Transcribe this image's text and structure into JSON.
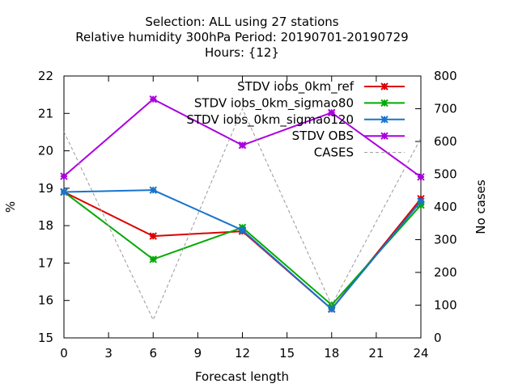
{
  "chart_data": {
    "type": "line",
    "title_lines": [
      "Selection: ALL using    27 stations",
      "Relative humidity 300hPa   Period: 20190701-20190729",
      "Hours: {12}"
    ],
    "xlabel": "Forecast length",
    "ylabel": "%",
    "y2label": "No cases",
    "x": [
      0,
      6,
      12,
      18,
      24
    ],
    "xlim": [
      0,
      24
    ],
    "ylim": [
      15,
      22
    ],
    "y2lim": [
      0,
      800
    ],
    "xticks": [
      0,
      3,
      6,
      9,
      12,
      15,
      18,
      21,
      24
    ],
    "yticks": [
      15,
      16,
      17,
      18,
      19,
      20,
      21,
      22
    ],
    "y2ticks": [
      0,
      100,
      200,
      300,
      400,
      500,
      600,
      700,
      800
    ],
    "grid": false,
    "legend_position": "top-right",
    "series": [
      {
        "name": "STDV iobs_0km_ref",
        "color": "#dd0000",
        "axis": "y",
        "values": [
          18.9,
          17.72,
          17.85,
          15.77,
          18.72
        ]
      },
      {
        "name": "STDV iobs_0km_sigmao80",
        "color": "#00aa00",
        "axis": "y",
        "values": [
          18.9,
          17.1,
          17.95,
          15.88,
          18.55
        ]
      },
      {
        "name": "STDV iobs_0km_sigmao120",
        "color": "#1874cd",
        "axis": "y",
        "values": [
          18.9,
          18.95,
          17.88,
          15.77,
          18.65
        ]
      },
      {
        "name": "STDV OBS",
        "color": "#aa00dd",
        "axis": "y",
        "values": [
          19.32,
          21.38,
          20.15,
          21.02,
          19.3
        ]
      },
      {
        "name": "CASES",
        "color": "#999999",
        "axis": "y2",
        "dashed": true,
        "values": [
          630,
          55,
          700,
          100,
          610
        ]
      }
    ]
  }
}
